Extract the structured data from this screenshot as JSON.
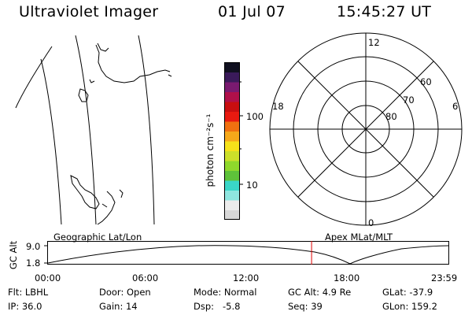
{
  "header": {
    "instrument": "Ultraviolet Imager",
    "date": "01 Jul 07",
    "time": "15:45:27 UT"
  },
  "map_panel": {
    "label": "Geographic Lat/Lon"
  },
  "colorbar": {
    "unit_label": "photon cm⁻²s⁻¹",
    "tick_labels": [
      "100",
      "10"
    ],
    "scale": "log",
    "colors": [
      "#d8d8d8",
      "#ececec",
      "#8fe6e0",
      "#3ad6c8",
      "#5ec23a",
      "#8fd82c",
      "#cce02a",
      "#f6e21a",
      "#f6a81a",
      "#f07010",
      "#e81a10",
      "#c80e10",
      "#b0104a",
      "#7a1a70",
      "#3a1a5a",
      "#101020"
    ]
  },
  "polar_panel": {
    "label": "Apex MLat/MLT",
    "mlt_labels": {
      "top": "12",
      "left": "18",
      "right": "6",
      "bottom": "0"
    },
    "lat_labels": [
      "60",
      "70",
      "80"
    ]
  },
  "altitude_strip": {
    "axis_label": "GC Alt",
    "y_ticks": [
      "9.0",
      "1.8"
    ],
    "x_ticks": [
      "00:00",
      "06:00",
      "12:00",
      "18:00",
      "23:59"
    ],
    "current_time_marker": "15:45:27",
    "marker_color": "#e00000"
  },
  "info": {
    "filter": {
      "label": "Flt:",
      "value": "LBHL"
    },
    "ip": {
      "label": "IP:",
      "value": "36.0"
    },
    "door": {
      "label": "Door:",
      "value": "Open"
    },
    "gain": {
      "label": "Gain:",
      "value": "14"
    },
    "mode": {
      "label": "Mode:",
      "value": "Normal"
    },
    "dsp": {
      "label": "Dsp:",
      "value": "-5.8"
    },
    "gc_alt": {
      "label": "GC Alt:",
      "value": "4.9 Re"
    },
    "seq": {
      "label": "Seq:",
      "value": "39"
    },
    "glat": {
      "label": "GLat:",
      "value": "-37.9"
    },
    "glon": {
      "label": "GLon:",
      "value": "159.2"
    }
  }
}
